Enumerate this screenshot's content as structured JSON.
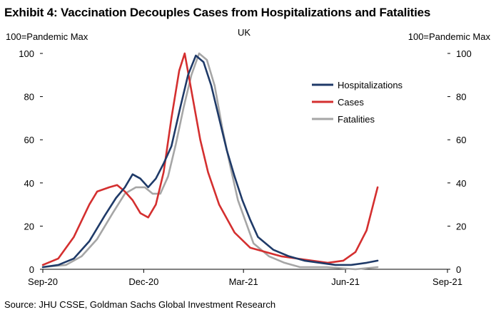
{
  "title": "Exhibit 4: Vaccination Decouples Cases from Hospitalizations and Fatalities",
  "source": "Source: JHU CSSE, Goldman Sachs Global Investment Research",
  "chart_data": {
    "type": "line",
    "title": "UK",
    "ylabel_left": "100=Pandemic  Max",
    "ylabel_right": "100=Pandemic  Max",
    "ylim": [
      0,
      100
    ],
    "y_ticks": [
      0,
      20,
      40,
      60,
      80,
      100
    ],
    "x_ticks": [
      "Sep-20",
      "Dec-20",
      "Mar-21",
      "Jun-21",
      "Sep-21"
    ],
    "x_tick_dates": [
      "2020-09-01",
      "2020-12-01",
      "2021-03-01",
      "2021-06-01",
      "2021-09-01"
    ],
    "xlim": [
      "2020-09-01",
      "2021-09-01"
    ],
    "grid": false,
    "legend_position": "top-right",
    "series": [
      {
        "name": "Hospitalizations",
        "color": "#1f3a68",
        "points": [
          [
            "2020-09-01",
            1
          ],
          [
            "2020-09-15",
            2
          ],
          [
            "2020-09-29",
            5
          ],
          [
            "2020-10-13",
            13
          ],
          [
            "2020-10-27",
            25
          ],
          [
            "2020-11-06",
            33
          ],
          [
            "2020-11-14",
            38
          ],
          [
            "2020-11-21",
            44
          ],
          [
            "2020-11-28",
            42
          ],
          [
            "2020-12-05",
            38
          ],
          [
            "2020-12-12",
            42
          ],
          [
            "2020-12-19",
            49
          ],
          [
            "2020-12-26",
            57
          ],
          [
            "2021-01-03",
            75
          ],
          [
            "2021-01-10",
            90
          ],
          [
            "2021-01-17",
            99
          ],
          [
            "2021-01-24",
            96
          ],
          [
            "2021-01-31",
            85
          ],
          [
            "2021-02-07",
            70
          ],
          [
            "2021-02-14",
            55
          ],
          [
            "2021-02-21",
            43
          ],
          [
            "2021-02-28",
            32
          ],
          [
            "2021-03-07",
            23
          ],
          [
            "2021-03-14",
            15
          ],
          [
            "2021-03-28",
            9
          ],
          [
            "2021-04-11",
            6
          ],
          [
            "2021-04-25",
            4
          ],
          [
            "2021-05-09",
            3
          ],
          [
            "2021-05-23",
            2
          ],
          [
            "2021-06-06",
            2
          ],
          [
            "2021-06-20",
            3
          ],
          [
            "2021-06-30",
            4
          ]
        ]
      },
      {
        "name": "Cases",
        "color": "#d42f2f",
        "points": [
          [
            "2020-09-01",
            2
          ],
          [
            "2020-09-15",
            5
          ],
          [
            "2020-09-29",
            15
          ],
          [
            "2020-10-13",
            30
          ],
          [
            "2020-10-20",
            36
          ],
          [
            "2020-10-31",
            38
          ],
          [
            "2020-11-07",
            39
          ],
          [
            "2020-11-14",
            36
          ],
          [
            "2020-11-21",
            32
          ],
          [
            "2020-11-28",
            26
          ],
          [
            "2020-12-05",
            24
          ],
          [
            "2020-12-12",
            30
          ],
          [
            "2020-12-19",
            45
          ],
          [
            "2020-12-26",
            70
          ],
          [
            "2021-01-02",
            92
          ],
          [
            "2021-01-07",
            100
          ],
          [
            "2021-01-14",
            80
          ],
          [
            "2021-01-21",
            60
          ],
          [
            "2021-01-28",
            45
          ],
          [
            "2021-02-07",
            30
          ],
          [
            "2021-02-21",
            17
          ],
          [
            "2021-03-07",
            10
          ],
          [
            "2021-03-21",
            8
          ],
          [
            "2021-04-04",
            6
          ],
          [
            "2021-04-18",
            5
          ],
          [
            "2021-05-02",
            4
          ],
          [
            "2021-05-16",
            3
          ],
          [
            "2021-05-30",
            4
          ],
          [
            "2021-06-10",
            8
          ],
          [
            "2021-06-20",
            18
          ],
          [
            "2021-06-30",
            38
          ]
        ]
      },
      {
        "name": "Fatalities",
        "color": "#a6a6a6",
        "points": [
          [
            "2020-09-01",
            1
          ],
          [
            "2020-09-22",
            2
          ],
          [
            "2020-10-06",
            6
          ],
          [
            "2020-10-20",
            14
          ],
          [
            "2020-11-03",
            26
          ],
          [
            "2020-11-14",
            35
          ],
          [
            "2020-11-24",
            38
          ],
          [
            "2020-12-02",
            38
          ],
          [
            "2020-12-09",
            35
          ],
          [
            "2020-12-16",
            35
          ],
          [
            "2020-12-23",
            43
          ],
          [
            "2020-12-30",
            58
          ],
          [
            "2021-01-06",
            75
          ],
          [
            "2021-01-13",
            90
          ],
          [
            "2021-01-20",
            100
          ],
          [
            "2021-01-27",
            97
          ],
          [
            "2021-02-03",
            85
          ],
          [
            "2021-02-10",
            65
          ],
          [
            "2021-02-17",
            48
          ],
          [
            "2021-02-24",
            32
          ],
          [
            "2021-03-03",
            22
          ],
          [
            "2021-03-10",
            12
          ],
          [
            "2021-03-24",
            6
          ],
          [
            "2021-04-07",
            3
          ],
          [
            "2021-04-21",
            1
          ],
          [
            "2021-05-15",
            1
          ],
          [
            "2021-06-10",
            0
          ],
          [
            "2021-06-30",
            1
          ]
        ]
      }
    ]
  }
}
